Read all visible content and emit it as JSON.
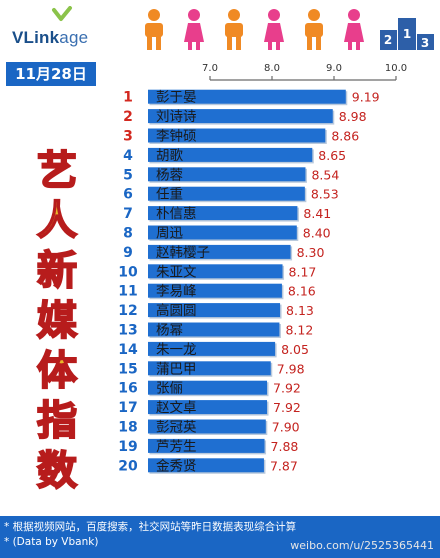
{
  "brand": {
    "logo_prefix": "VLink",
    "logo_suffix": "age"
  },
  "date_label": "11月28日",
  "side_title": [
    "艺",
    "人",
    "新",
    "媒",
    "体",
    "指",
    "数"
  ],
  "footer": {
    "line1": "* 根据视频网站，百度搜索，社交网站等昨日数据表现综合计算",
    "line2": "* (Data by Vbank)",
    "watermark": "weibo.com/u/2525365441"
  },
  "colors": {
    "accent_blue": "#1a66c4",
    "bar_blue": "#1f6fd1",
    "rank_red": "#d3281f",
    "value_red": "#c4231f",
    "title_fill": "#e8b92a",
    "title_stroke": "#b71c1c"
  },
  "chart_data": {
    "type": "bar",
    "orientation": "horizontal",
    "title": "",
    "xlim": [
      7.0,
      10.0
    ],
    "x_ticks": [
      "7.0",
      "8.0",
      "9.0",
      "10.0"
    ],
    "ranks": [
      "1",
      "2",
      "3",
      "4",
      "5",
      "6",
      "7",
      "8",
      "9",
      "10",
      "11",
      "12",
      "13",
      "14",
      "15",
      "16",
      "17",
      "18",
      "19",
      "20"
    ],
    "categories": [
      "彭于晏",
      "刘诗诗",
      "李钟硕",
      "胡歌",
      "杨蓉",
      "任重",
      "朴信惠",
      "周迅",
      "赵韩樱子",
      "朱亚文",
      "李易峰",
      "高圆圆",
      "杨幂",
      "朱一龙",
      "蒲巴甲",
      "张俪",
      "赵文卓",
      "彭冠英",
      "芦芳生",
      "金秀贤"
    ],
    "values": [
      9.19,
      8.98,
      8.86,
      8.65,
      8.54,
      8.53,
      8.41,
      8.4,
      8.3,
      8.17,
      8.16,
      8.13,
      8.12,
      8.05,
      7.98,
      7.92,
      7.92,
      7.9,
      7.88,
      7.87
    ],
    "value_labels": [
      "9.19",
      "8.98",
      "8.86",
      "8.65",
      "8.54",
      "8.53",
      "8.41",
      "8.40",
      "8.30",
      "8.17",
      "8.16",
      "8.13",
      "8.12",
      "8.05",
      "7.98",
      "7.92",
      "7.92",
      "7.90",
      "7.88",
      "7.87"
    ],
    "legend": "none",
    "grid": false
  }
}
